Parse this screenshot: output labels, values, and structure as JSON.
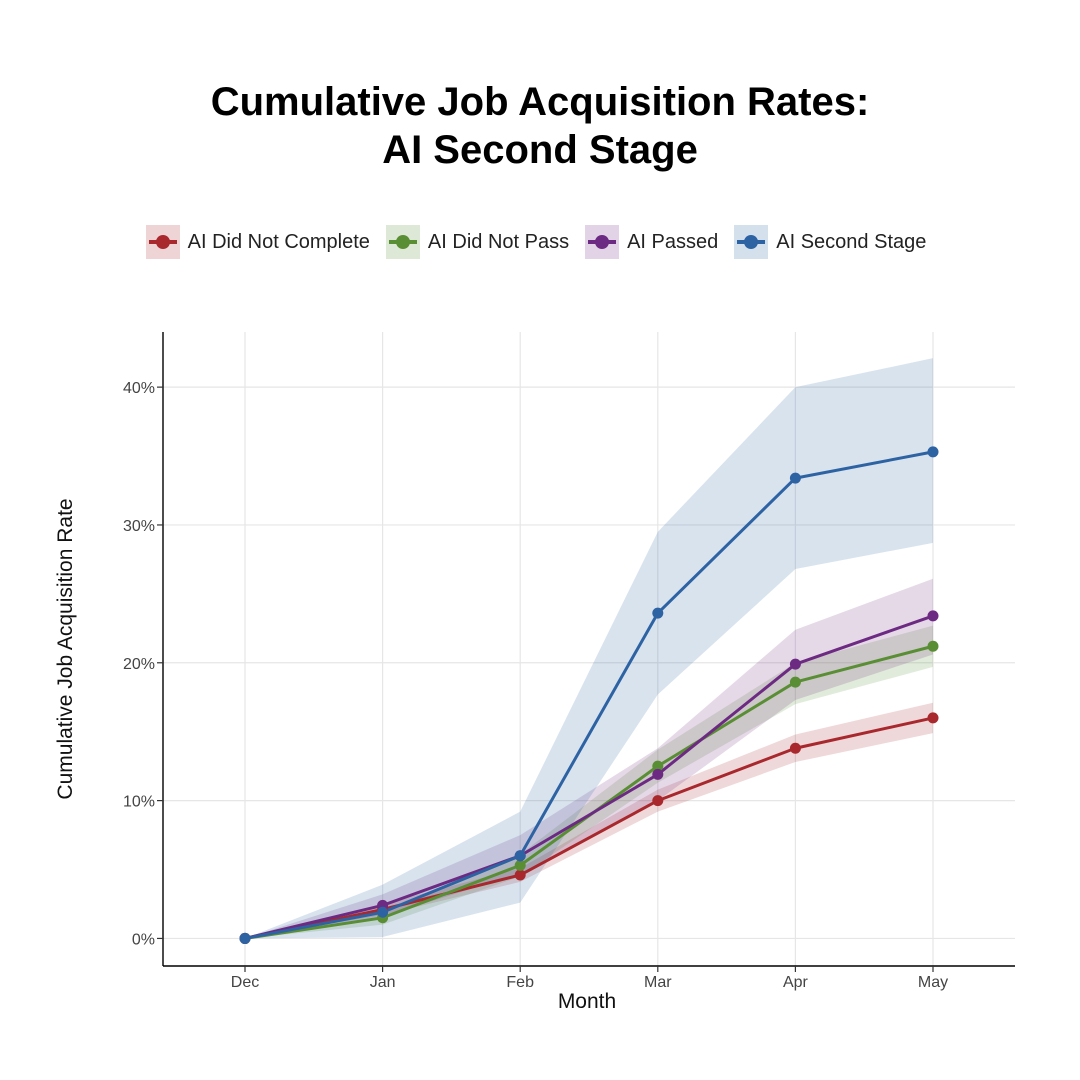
{
  "chart_data": {
    "type": "line",
    "title_lines": [
      "Cumulative Job Acquisition Rates:",
      "AI Second Stage"
    ],
    "xlabel": "Month",
    "ylabel": "Cumulative Job Acquisition Rate",
    "categories": [
      "Dec",
      "Jan",
      "Feb",
      "Mar",
      "Apr",
      "May"
    ],
    "ylim": [
      -0.02,
      0.44
    ],
    "yticks": [
      0,
      0.1,
      0.2,
      0.3,
      0.4
    ],
    "ytick_labels": [
      "0%",
      "10%",
      "20%",
      "30%",
      "40%"
    ],
    "grid": true,
    "legend_position": "top",
    "series": [
      {
        "name": "AI Did Not Complete",
        "color": "#a8282d",
        "values": [
          0,
          0.021,
          0.046,
          0.1,
          0.138,
          0.16
        ],
        "lower": [
          0,
          0.017,
          0.041,
          0.092,
          0.128,
          0.149
        ],
        "upper": [
          0,
          0.025,
          0.051,
          0.108,
          0.148,
          0.171
        ]
      },
      {
        "name": "AI Did Not Pass",
        "color": "#5a8e35",
        "values": [
          0,
          0.015,
          0.053,
          0.125,
          0.186,
          0.212
        ],
        "lower": [
          0,
          0.01,
          0.045,
          0.113,
          0.17,
          0.197
        ],
        "upper": [
          0,
          0.02,
          0.061,
          0.137,
          0.2,
          0.227
        ]
      },
      {
        "name": "AI Passed",
        "color": "#6d2a82",
        "values": [
          0,
          0.024,
          0.06,
          0.119,
          0.199,
          0.234
        ],
        "lower": [
          0,
          0.016,
          0.047,
          0.1,
          0.173,
          0.206
        ],
        "upper": [
          0,
          0.032,
          0.075,
          0.138,
          0.224,
          0.261
        ]
      },
      {
        "name": "AI Second Stage",
        "color": "#2e63a3",
        "values": [
          0,
          0.019,
          0.06,
          0.236,
          0.334,
          0.353
        ],
        "lower": [
          0,
          0.001,
          0.026,
          0.177,
          0.268,
          0.287
        ],
        "upper": [
          0,
          0.039,
          0.092,
          0.295,
          0.4,
          0.421
        ]
      }
    ]
  }
}
